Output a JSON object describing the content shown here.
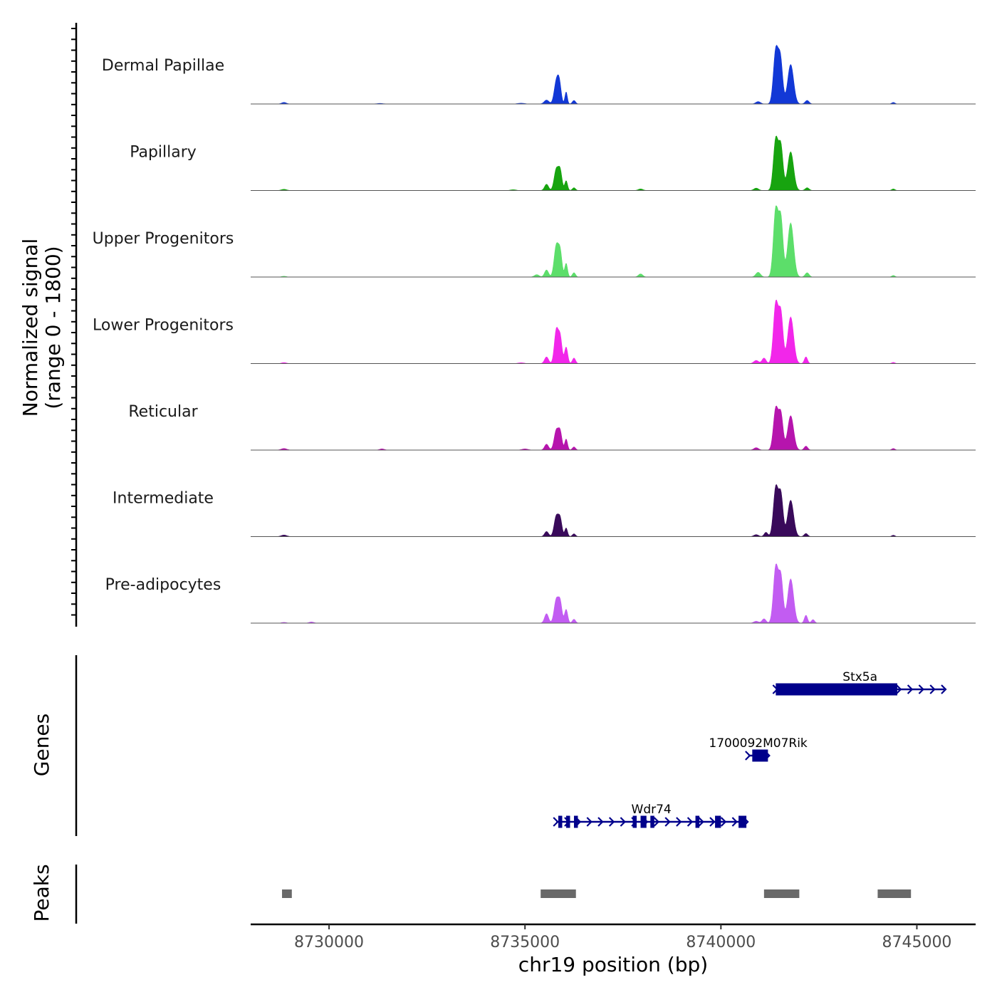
{
  "chart_data": {
    "type": "area",
    "title": "",
    "region": {
      "chromosome": "chr19",
      "start": 8728000,
      "end": 8746500
    },
    "xlabel": "chr19 position (bp)",
    "x_ticks": [
      8730000,
      8735000,
      8740000,
      8745000
    ],
    "x_tick_labels": [
      "8730000",
      "8735000",
      "8740000",
      "8745000"
    ],
    "ylabel_line1": "Normalized signal",
    "ylabel_line2": "(range 0 - 1800)",
    "ylim": [
      0,
      1800
    ],
    "genes_label": "Genes",
    "peaks_label": "Peaks",
    "series": [
      {
        "name": "Dermal Papillae",
        "color": "#1238d6",
        "peaks": [
          {
            "x": 8728850,
            "y": 40,
            "w": 60
          },
          {
            "x": 8731300,
            "y": 15,
            "w": 80
          },
          {
            "x": 8734900,
            "y": 20,
            "w": 90
          },
          {
            "x": 8735550,
            "y": 100,
            "w": 60
          },
          {
            "x": 8735800,
            "y": 560,
            "w": 55
          },
          {
            "x": 8735880,
            "y": 460,
            "w": 45
          },
          {
            "x": 8736050,
            "y": 310,
            "w": 30
          },
          {
            "x": 8736250,
            "y": 90,
            "w": 40
          },
          {
            "x": 8740950,
            "y": 60,
            "w": 60
          },
          {
            "x": 8741400,
            "y": 1350,
            "w": 60
          },
          {
            "x": 8741520,
            "y": 1100,
            "w": 55
          },
          {
            "x": 8741780,
            "y": 1000,
            "w": 75
          },
          {
            "x": 8742200,
            "y": 90,
            "w": 50
          },
          {
            "x": 8744400,
            "y": 40,
            "w": 40
          }
        ]
      },
      {
        "name": "Papillary",
        "color": "#17a40f",
        "peaks": [
          {
            "x": 8728850,
            "y": 30,
            "w": 70
          },
          {
            "x": 8734700,
            "y": 20,
            "w": 70
          },
          {
            "x": 8735550,
            "y": 160,
            "w": 50
          },
          {
            "x": 8735800,
            "y": 540,
            "w": 55
          },
          {
            "x": 8735900,
            "y": 470,
            "w": 45
          },
          {
            "x": 8736050,
            "y": 250,
            "w": 35
          },
          {
            "x": 8736250,
            "y": 70,
            "w": 40
          },
          {
            "x": 8737950,
            "y": 40,
            "w": 60
          },
          {
            "x": 8740900,
            "y": 60,
            "w": 60
          },
          {
            "x": 8741400,
            "y": 1300,
            "w": 60
          },
          {
            "x": 8741530,
            "y": 1100,
            "w": 55
          },
          {
            "x": 8741780,
            "y": 980,
            "w": 75
          },
          {
            "x": 8742200,
            "y": 70,
            "w": 50
          },
          {
            "x": 8744400,
            "y": 40,
            "w": 40
          }
        ]
      },
      {
        "name": "Upper Progenitors",
        "color": "#5cde6a",
        "peaks": [
          {
            "x": 8728850,
            "y": 20,
            "w": 60
          },
          {
            "x": 8735300,
            "y": 60,
            "w": 60
          },
          {
            "x": 8735550,
            "y": 180,
            "w": 50
          },
          {
            "x": 8735800,
            "y": 800,
            "w": 55
          },
          {
            "x": 8735900,
            "y": 600,
            "w": 45
          },
          {
            "x": 8736050,
            "y": 350,
            "w": 35
          },
          {
            "x": 8736250,
            "y": 110,
            "w": 40
          },
          {
            "x": 8737950,
            "y": 80,
            "w": 55
          },
          {
            "x": 8740950,
            "y": 120,
            "w": 60
          },
          {
            "x": 8741400,
            "y": 1720,
            "w": 60
          },
          {
            "x": 8741530,
            "y": 1450,
            "w": 55
          },
          {
            "x": 8741780,
            "y": 1370,
            "w": 75
          },
          {
            "x": 8742200,
            "y": 110,
            "w": 50
          },
          {
            "x": 8744400,
            "y": 40,
            "w": 40
          }
        ]
      },
      {
        "name": "Lower Progenitors",
        "color": "#f226ea",
        "peaks": [
          {
            "x": 8728850,
            "y": 25,
            "w": 60
          },
          {
            "x": 8734900,
            "y": 20,
            "w": 80
          },
          {
            "x": 8735550,
            "y": 170,
            "w": 50
          },
          {
            "x": 8735800,
            "y": 850,
            "w": 50
          },
          {
            "x": 8735900,
            "y": 650,
            "w": 45
          },
          {
            "x": 8736050,
            "y": 420,
            "w": 40
          },
          {
            "x": 8736250,
            "y": 140,
            "w": 40
          },
          {
            "x": 8740900,
            "y": 80,
            "w": 60
          },
          {
            "x": 8741100,
            "y": 140,
            "w": 50
          },
          {
            "x": 8741400,
            "y": 1520,
            "w": 60
          },
          {
            "x": 8741530,
            "y": 1250,
            "w": 55
          },
          {
            "x": 8741780,
            "y": 1180,
            "w": 75
          },
          {
            "x": 8742170,
            "y": 170,
            "w": 40
          },
          {
            "x": 8744400,
            "y": 30,
            "w": 40
          }
        ]
      },
      {
        "name": "Reticular",
        "color": "#b614ad",
        "peaks": [
          {
            "x": 8728850,
            "y": 40,
            "w": 70
          },
          {
            "x": 8731350,
            "y": 30,
            "w": 60
          },
          {
            "x": 8735000,
            "y": 30,
            "w": 80
          },
          {
            "x": 8735550,
            "y": 150,
            "w": 50
          },
          {
            "x": 8735800,
            "y": 500,
            "w": 55
          },
          {
            "x": 8735900,
            "y": 430,
            "w": 45
          },
          {
            "x": 8736050,
            "y": 280,
            "w": 35
          },
          {
            "x": 8736250,
            "y": 80,
            "w": 40
          },
          {
            "x": 8740900,
            "y": 60,
            "w": 60
          },
          {
            "x": 8741400,
            "y": 1050,
            "w": 60
          },
          {
            "x": 8741530,
            "y": 900,
            "w": 55
          },
          {
            "x": 8741780,
            "y": 870,
            "w": 75
          },
          {
            "x": 8742170,
            "y": 100,
            "w": 45
          },
          {
            "x": 8744400,
            "y": 40,
            "w": 40
          }
        ]
      },
      {
        "name": "Intermediate",
        "color": "#390a5a",
        "peaks": [
          {
            "x": 8728850,
            "y": 40,
            "w": 70
          },
          {
            "x": 8735550,
            "y": 130,
            "w": 50
          },
          {
            "x": 8735800,
            "y": 520,
            "w": 55
          },
          {
            "x": 8735900,
            "y": 420,
            "w": 45
          },
          {
            "x": 8736050,
            "y": 220,
            "w": 35
          },
          {
            "x": 8736250,
            "y": 70,
            "w": 40
          },
          {
            "x": 8740900,
            "y": 50,
            "w": 60
          },
          {
            "x": 8741150,
            "y": 110,
            "w": 45
          },
          {
            "x": 8741400,
            "y": 1240,
            "w": 60
          },
          {
            "x": 8741530,
            "y": 1050,
            "w": 55
          },
          {
            "x": 8741780,
            "y": 920,
            "w": 75
          },
          {
            "x": 8742170,
            "y": 80,
            "w": 45
          },
          {
            "x": 8744400,
            "y": 35,
            "w": 40
          }
        ]
      },
      {
        "name": "Pre-adipocytes",
        "color": "#c25cf2",
        "peaks": [
          {
            "x": 8728850,
            "y": 20,
            "w": 60
          },
          {
            "x": 8729550,
            "y": 30,
            "w": 60
          },
          {
            "x": 8735550,
            "y": 240,
            "w": 50
          },
          {
            "x": 8735800,
            "y": 600,
            "w": 55
          },
          {
            "x": 8735900,
            "y": 500,
            "w": 45
          },
          {
            "x": 8736050,
            "y": 350,
            "w": 40
          },
          {
            "x": 8736250,
            "y": 100,
            "w": 40
          },
          {
            "x": 8740900,
            "y": 50,
            "w": 60
          },
          {
            "x": 8741100,
            "y": 110,
            "w": 50
          },
          {
            "x": 8741400,
            "y": 1420,
            "w": 60
          },
          {
            "x": 8741530,
            "y": 1150,
            "w": 55
          },
          {
            "x": 8741780,
            "y": 1120,
            "w": 75
          },
          {
            "x": 8742170,
            "y": 200,
            "w": 40
          },
          {
            "x": 8742350,
            "y": 90,
            "w": 40
          }
        ]
      }
    ],
    "genes": [
      {
        "name": "Stx5a",
        "start": 8741400,
        "end": 8745700,
        "strand": "+",
        "exons": [
          [
            8741400,
            8744500
          ]
        ]
      },
      {
        "name": "1700092M07Rik",
        "start": 8740700,
        "end": 8741200,
        "strand": "+",
        "exons": [
          [
            8740800,
            8741200
          ]
        ]
      },
      {
        "name": "Wdr74",
        "start": 8735800,
        "end": 8740650,
        "strand": "+",
        "exons": [
          [
            8735850,
            8735950
          ],
          [
            8736050,
            8736150
          ],
          [
            8736250,
            8736350
          ],
          [
            8737750,
            8737850
          ],
          [
            8737950,
            8738100
          ],
          [
            8738200,
            8738300
          ],
          [
            8739350,
            8739450
          ],
          [
            8739850,
            8740000
          ],
          [
            8740450,
            8740650
          ]
        ]
      }
    ],
    "peaks": [
      [
        8728800,
        8729050
      ],
      [
        8735400,
        8736300
      ],
      [
        8741100,
        8742000
      ],
      [
        8744000,
        8744850
      ]
    ]
  }
}
